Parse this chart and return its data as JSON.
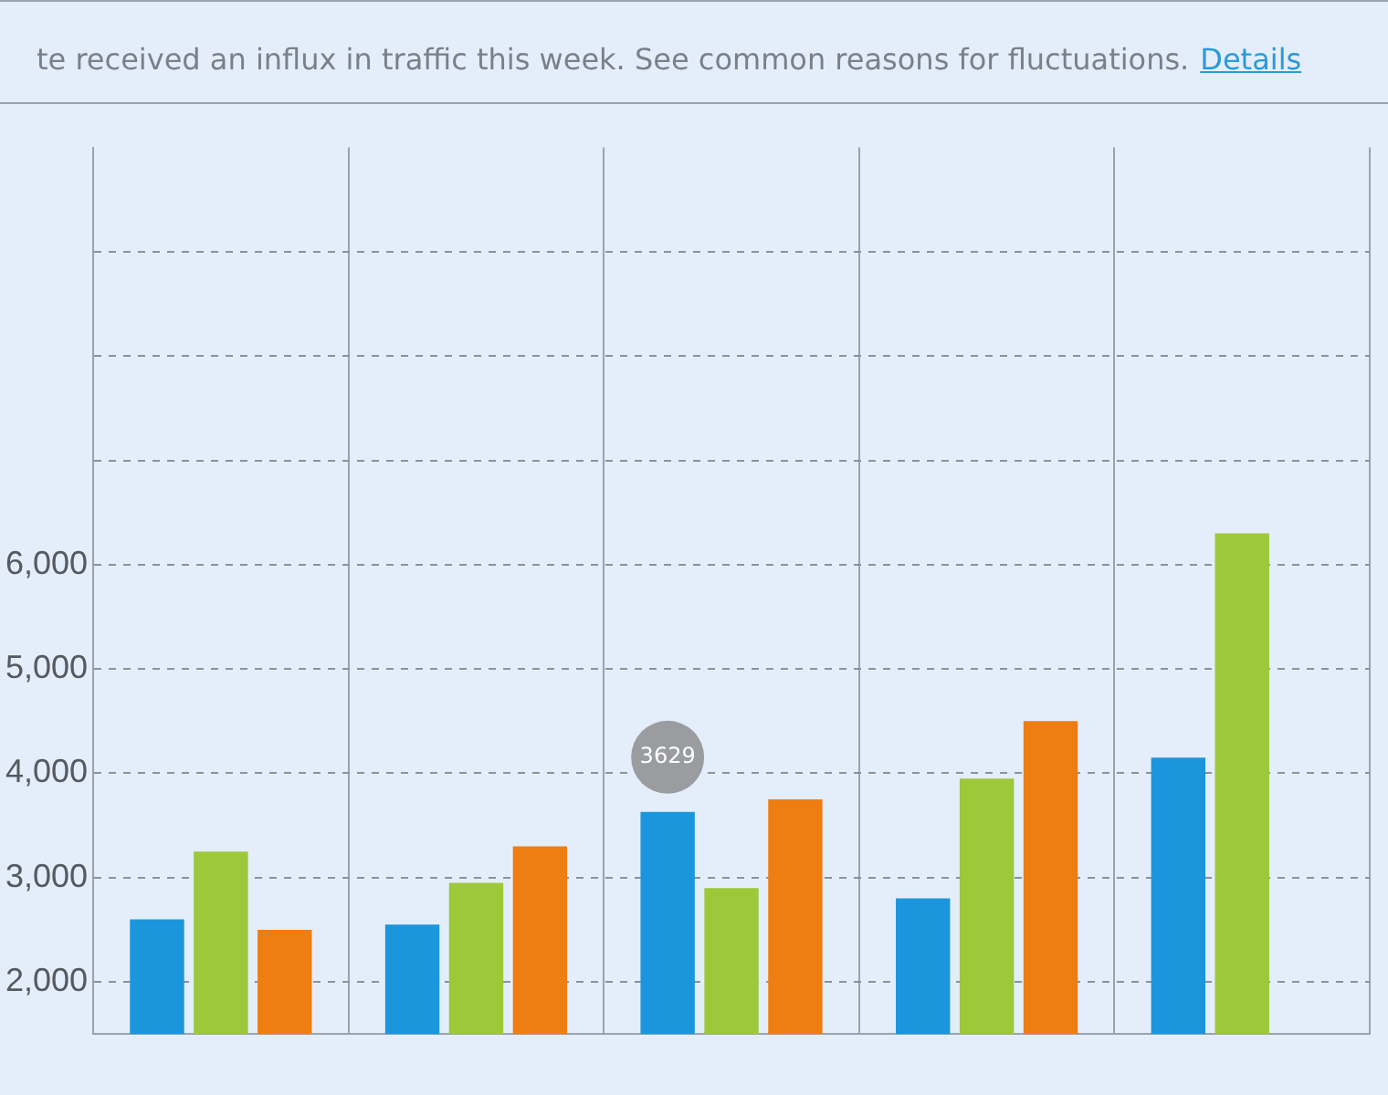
{
  "chart_data": {
    "type": "bar",
    "annotations": [
      "te received an influx in traffic this week. See common reasons for fluctuations.",
      "Details"
    ],
    "categories": [
      null,
      null,
      null,
      null,
      null
    ],
    "series": [
      {
        "color": "#1b96dc",
        "values": [
          2600,
          2550,
          3629,
          2800,
          4150
        ],
        "value_labels": [
          null,
          null,
          "3629",
          null,
          null
        ]
      },
      {
        "color": "#9dc83a",
        "values": [
          3250,
          2950,
          2900,
          3950,
          6300
        ]
      },
      {
        "color": "#ee7d12",
        "values": [
          2500,
          3300,
          3750,
          4500,
          null
        ]
      }
    ],
    "ylim": [
      1500,
      10000
    ],
    "yticks": [
      {
        "value": 2000,
        "label": "2,000"
      },
      {
        "value": 3000,
        "label": "3,000"
      },
      {
        "value": 4000,
        "label": "4,000"
      },
      {
        "value": 5000,
        "label": "5,000"
      },
      {
        "value": 6000,
        "label": "6,000"
      },
      {
        "value": 7000,
        "label": null
      },
      {
        "value": 8000,
        "label": null
      },
      {
        "value": 9000,
        "label": null
      }
    ],
    "grid": true,
    "legend": false
  }
}
